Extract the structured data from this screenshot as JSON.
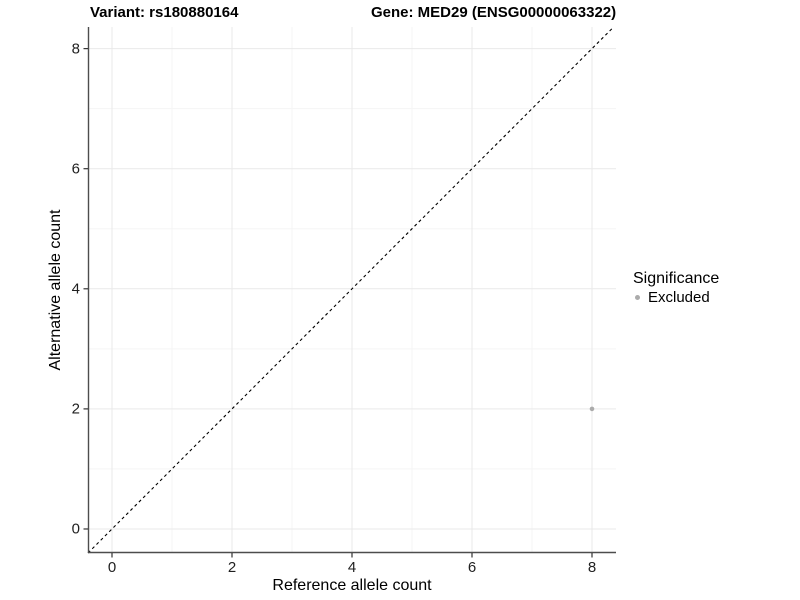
{
  "chart_data": {
    "type": "scatter",
    "titles": {
      "left": "Variant: rs180880164",
      "right": "Gene: MED29 (ENSG00000063322)"
    },
    "xlabel": "Reference allele count",
    "ylabel": "Alternative allele count",
    "xlim": [
      -0.4,
      8.4
    ],
    "ylim": [
      -0.4,
      8.36
    ],
    "x_ticks": [
      0,
      2,
      4,
      6,
      8
    ],
    "y_ticks": [
      0,
      2,
      4,
      6,
      8
    ],
    "x_minor": [
      1,
      3,
      5,
      7
    ],
    "y_minor": [
      1,
      3,
      5,
      7
    ],
    "grid": "major+minor",
    "points": [
      {
        "x": 8,
        "y": 2,
        "series": "Excluded"
      }
    ],
    "reference_line": {
      "slope": 1,
      "intercept": 0,
      "style": "dashed"
    },
    "legend": {
      "title": "Significance",
      "position": "right",
      "items": [
        {
          "label": "Excluded",
          "color": "#ababab"
        }
      ]
    },
    "colors": {
      "background": "#ffffff",
      "grid_major": "#e9e9e9",
      "grid_minor": "#f5f5f5",
      "axis_line": "#4d4d4d",
      "tick_mark": "#333333",
      "tick_label": "#1f1f1f",
      "reference_line": "#000000",
      "point_excluded": "#ababab"
    }
  }
}
